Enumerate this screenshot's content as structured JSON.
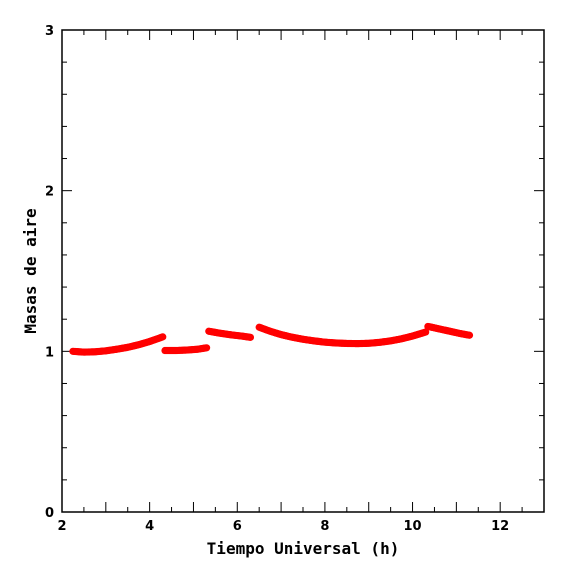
{
  "chart_data": {
    "type": "scatter",
    "xlabel": "Tiempo Universal (h)",
    "ylabel": "Masas de aire",
    "xlim": [
      2,
      13
    ],
    "ylim": [
      0,
      3
    ],
    "xticks": [
      "2",
      "4",
      "6",
      "8",
      "10",
      "12"
    ],
    "yticks": [
      "0",
      "1",
      "2",
      "3"
    ],
    "grid": false,
    "marker_color": "#ff0000",
    "series": [
      {
        "x": [
          2.25,
          2.5,
          2.75,
          3.0,
          3.25,
          3.5,
          3.75,
          4.0,
          4.3
        ],
        "y": [
          1.0,
          0.995,
          0.997,
          1.003,
          1.013,
          1.025,
          1.041,
          1.061,
          1.09
        ]
      },
      {
        "x": [
          4.35,
          4.6,
          4.85,
          5.1,
          5.3
        ],
        "y": [
          1.005,
          1.005,
          1.008,
          1.013,
          1.022
        ]
      },
      {
        "x": [
          5.35,
          5.6,
          5.85,
          6.1,
          6.3
        ],
        "y": [
          1.125,
          1.113,
          1.103,
          1.095,
          1.087
        ]
      },
      {
        "x": [
          6.5,
          6.75,
          7.0,
          7.25,
          7.5,
          7.75,
          8.0,
          8.25,
          8.5,
          8.75,
          9.0,
          9.25,
          9.5,
          9.75,
          10.0,
          10.3
        ],
        "y": [
          1.15,
          1.125,
          1.104,
          1.088,
          1.075,
          1.065,
          1.057,
          1.052,
          1.049,
          1.048,
          1.05,
          1.056,
          1.065,
          1.078,
          1.095,
          1.12
        ]
      },
      {
        "x": [
          10.35,
          10.6,
          10.85,
          11.1,
          11.3
        ],
        "y": [
          1.155,
          1.14,
          1.125,
          1.11,
          1.1
        ]
      }
    ]
  }
}
